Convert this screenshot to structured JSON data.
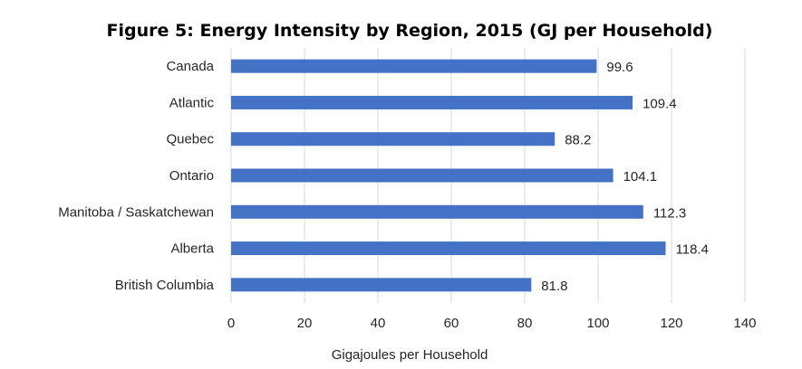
{
  "chart_data": {
    "type": "bar",
    "orientation": "horizontal",
    "title": "Figure 5: Energy Intensity by Region, 2015 (GJ per Household)",
    "xlabel": "Gigajoules per Household",
    "ylabel": "",
    "categories": [
      "Canada",
      "Atlantic",
      "Quebec",
      "Ontario",
      "Manitoba / Saskatchewan",
      "Alberta",
      "British Columbia"
    ],
    "values": [
      99.6,
      109.4,
      88.2,
      104.1,
      112.3,
      118.4,
      81.8
    ],
    "data_labels": [
      "99.6",
      "109.4",
      "88.2",
      "104.1",
      "112.3",
      "118.4",
      "81.8"
    ],
    "xlim": [
      0,
      140
    ],
    "xticks": [
      0,
      20,
      40,
      60,
      80,
      100,
      120,
      140
    ],
    "bar_color": "#4472c4",
    "grid": true,
    "legend": "none"
  }
}
